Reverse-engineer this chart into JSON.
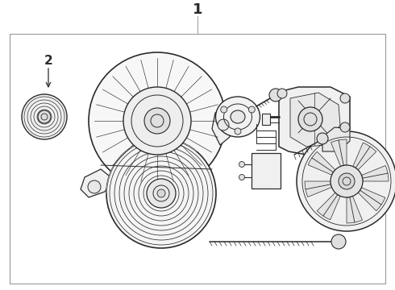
{
  "title": "1",
  "label2": "2",
  "bg": "#ffffff",
  "lc": "#2a2a2a",
  "border_color": "#999999",
  "fig_w": 4.9,
  "fig_h": 3.6,
  "dpi": 100
}
